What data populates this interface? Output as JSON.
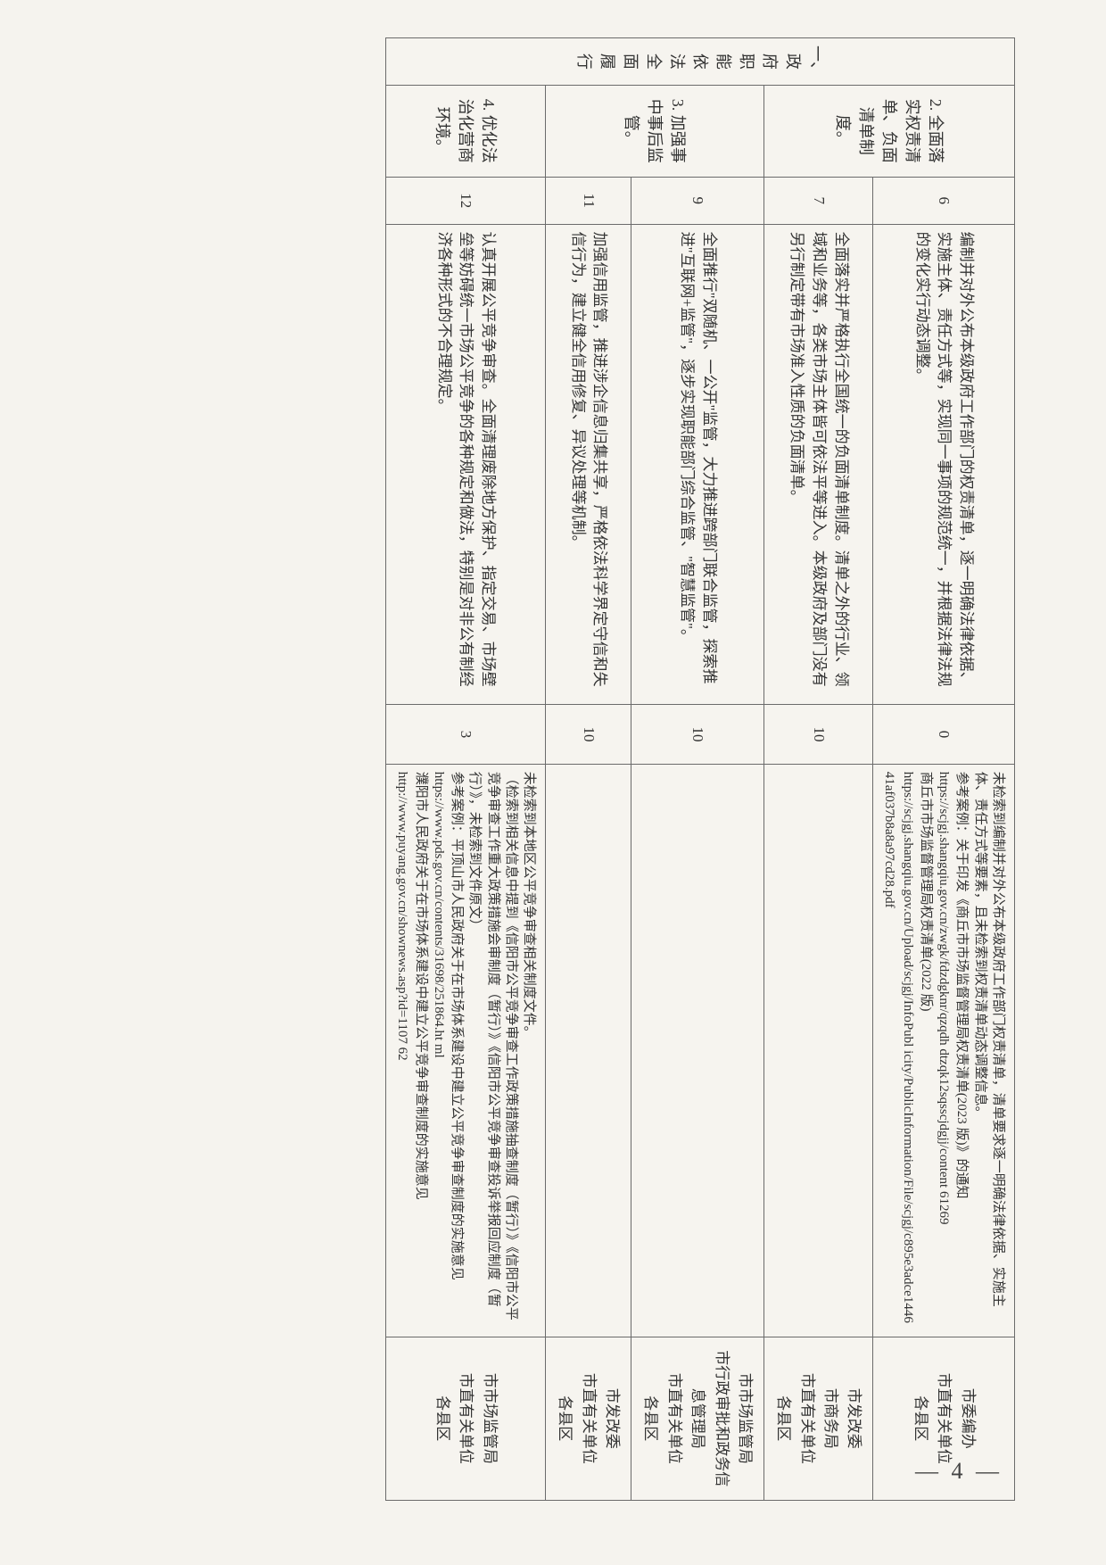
{
  "pageNumber": "— 4 —",
  "sectionHeader": "一、政府职能依法全面履行",
  "groups": [
    {
      "subHeader": "2. 全面落实权责清单、负面清单制度。",
      "rows": [
        {
          "idx": "6",
          "desc": "编制并对外公布本级政府工作部门的权责清单，逐一明确法律依据、实施主体、责任方式等，实现同一事项的规范统一，并根据法律法规的变化实行动态调整。",
          "score": "0",
          "remarks": "未检索到编制并对外公布本级政府工作部门权责清单，清单要求逐一明确法律依据、实施主体、责任方式等要素，且未检索到权责清单动态调整信息。\n参考案例：关于印发《商丘市市场监督管理局权责清单(2023 版)》的通知\nhttps://scjgj.shangqiu.gov.cn/zwgk/fdzdgknr/qzqdh dtzqk12sqsscjdgjj/content 61269\n商丘市市场监督管理局权责清单(2022 版)\nhttps://scjgj.shangqiu.gov.cn/Upload/scjgj/InfoPubl icity/PublicInformation/File/scjgj/c895e3adce1446 41af037b8a8a97cd28.pdf",
          "units": "市委编办\n市直有关单位\n各县区"
        },
        {
          "idx": "7",
          "desc": "全面落实并严格执行全国统一的负面清单制度。清单之外的行业、领域和业务等，各类市场主体皆可依法平等进入。本级政府及部门没有另行制定带有市场准入性质的负面清单。",
          "score": "10",
          "remarks": "",
          "units": "市发改委\n市商务局\n市直有关单位\n各县区"
        }
      ]
    },
    {
      "subHeader": "3. 加强事中事后监管。",
      "rows": [
        {
          "idx": "9",
          "desc": "全面推行\"双随机、一公开\"监管，大力推进跨部门联合监管，探索推进\"互联网+监管\"，逐步实现职能部门综合监管、\"智慧监管\"。",
          "score": "10",
          "remarks": "",
          "units": "市市场监管局\n市行政审批和政务信息管理局\n市直有关单位\n各县区"
        },
        {
          "idx": "11",
          "desc": "加强信用监管，推进涉企信息归集共享，严格依法科学界定守信和失信行为，建立健全信用修复、异议处理等机制。",
          "score": "10",
          "remarks": "",
          "units": "市发改委\n市直有关单位\n各县区"
        }
      ]
    },
    {
      "subHeader": "4. 优化法治化营商环境。",
      "rows": [
        {
          "idx": "12",
          "desc": "认真开展公平竞争审查。全面清理废除地方保护、指定交易、市场壁垒等妨碍统一市场公平竞争的各种规定和做法，特别是对非公有制经济各种形式的不合理规定。",
          "score": "3",
          "remarks": "未检索到本地区公平竞争审查相关制度文件。\n（检索到相关信息中提到《信阳市公平竞争审查工作政策措施抽查制度（暂行）》《信阳市公平竞争审查工作重大政策措施会审制度（暂行）》《信阳市公平竞争审查投诉举报回应制度（暂行）》，未检索到文件原文）\n参考案例：平顶山市人民政府关于在市场体系建设中建立公平竞争审查制度的实施意见\nhttps://www.pds.gov.cn/contents/31698/251864.ht ml\n濮阳市人民政府关于在市场体系建设中建立公平竞争审查制度的实施意见\nhttp://www.puyang.gov.cn/shownews.asp?id=1107 62",
          "units": "市市场监管局\n市直有关单位\n各县区"
        }
      ]
    }
  ]
}
